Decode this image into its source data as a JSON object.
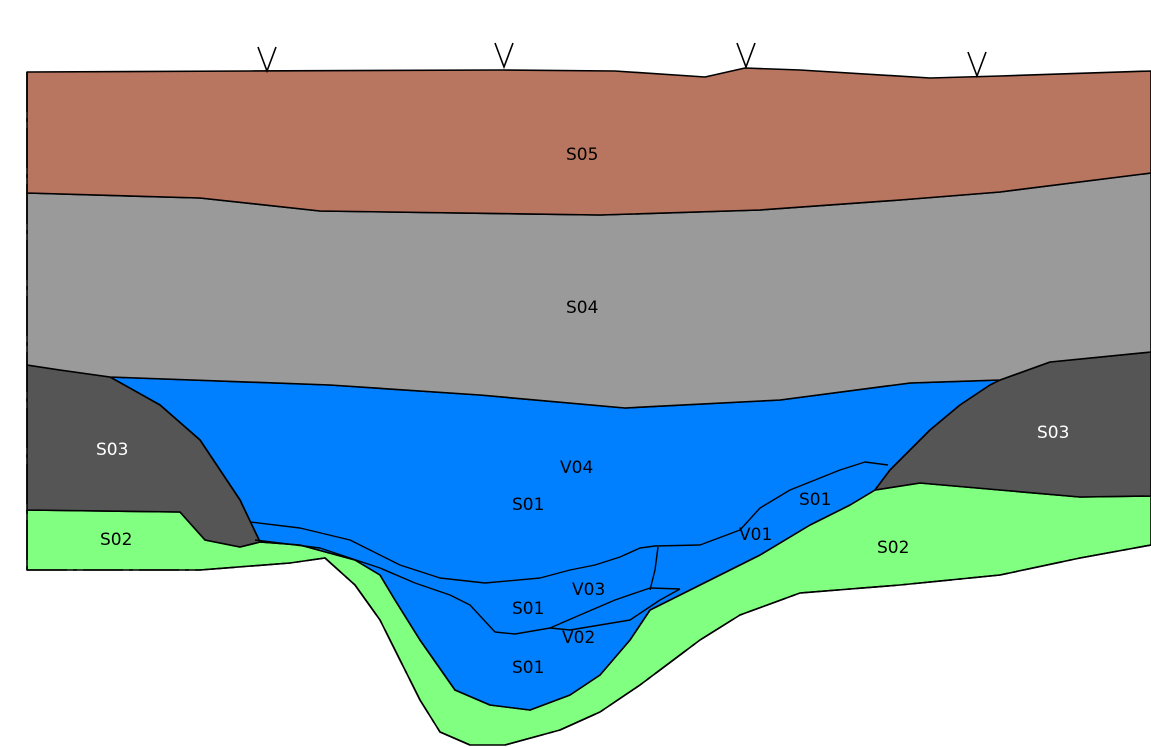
{
  "colors": {
    "S05": "#b87560",
    "S04": "#9a9a9a",
    "S03": "#555555",
    "S02": "#80ff80",
    "S01": "#0080ff",
    "background": "#ffffff",
    "lines": "#000000"
  },
  "layers": {
    "s05": "S05",
    "s04": "S04",
    "s03_left": "S03",
    "s03_right": "S03",
    "s02_left": "S02",
    "s02_right": "S02",
    "s01_upper": "S01",
    "s01_middle": "S01",
    "s01_lower": "S01",
    "s01_right": "S01"
  },
  "units": {
    "v04": "V04",
    "v03": "V03",
    "v02": "V02",
    "v01": "V01"
  },
  "surface_markers": [
    "V",
    "V",
    "V",
    "V"
  ]
}
